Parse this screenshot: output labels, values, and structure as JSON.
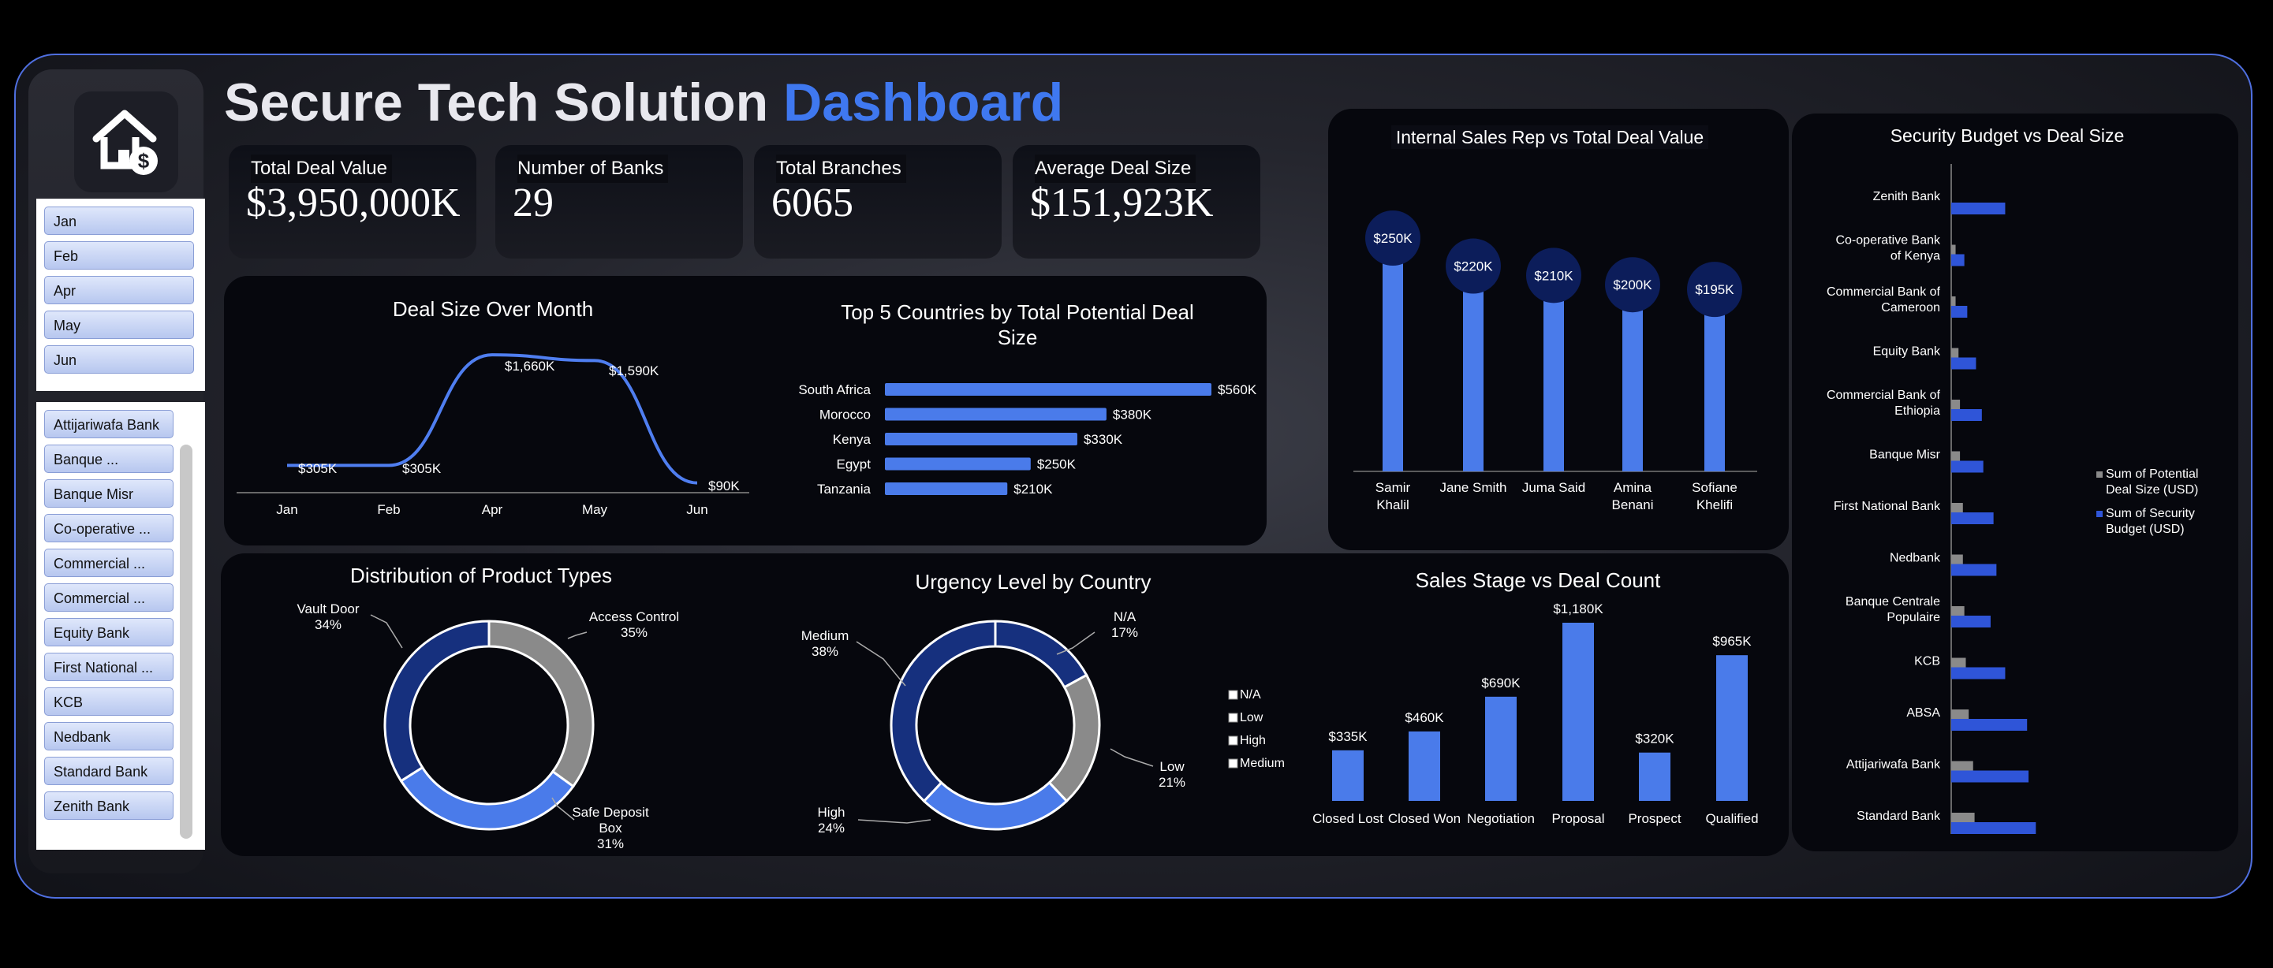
{
  "header": {
    "title_part1": "Secure Tech Solution",
    "title_part2": "Dashboard"
  },
  "colors": {
    "accent": "#3f78f0",
    "bar": "#4a7bea",
    "dark_blue": "#1a3a94",
    "grey": "#8a8a8a",
    "bubble": "#0c1d5a"
  },
  "sidebar": {
    "logo_icon": "house-dollar-icon",
    "months": [
      "Jan",
      "Feb",
      "Apr",
      "May",
      "Jun"
    ],
    "banks": [
      "Attijariwafa Bank",
      "Banque ...",
      "Banque Misr",
      "Co-operative ...",
      "Commercial ...",
      "Commercial ...",
      "Equity Bank",
      "First National ...",
      "KCB",
      "Nedbank",
      "Standard Bank",
      "Zenith Bank"
    ]
  },
  "kpis": [
    {
      "label": "Total Deal Value",
      "value": "$3,950,000K"
    },
    {
      "label": "Number of Banks",
      "value": "29"
    },
    {
      "label": "Total Branches",
      "value": "6065"
    },
    {
      "label": "Average Deal Size",
      "value": "$151,923K"
    }
  ],
  "chart_data": [
    {
      "id": "deal-size-month",
      "type": "line",
      "title": "Deal Size Over Month",
      "categories": [
        "Jan",
        "Feb",
        "Apr",
        "May",
        "Jun"
      ],
      "values": [
        305,
        305,
        1660,
        1590,
        90
      ],
      "labels": [
        "$305K",
        "$305K",
        "$1,660K",
        "$1,590K",
        "$90K"
      ]
    },
    {
      "id": "top-countries",
      "type": "bar",
      "orientation": "horizontal",
      "title": "Top 5 Countries by Total Potential Deal Size",
      "categories": [
        "South Africa",
        "Morocco",
        "Kenya",
        "Egypt",
        "Tanzania"
      ],
      "values": [
        560,
        380,
        330,
        250,
        210
      ],
      "labels": [
        "$560K",
        "$380K",
        "$330K",
        "$250K",
        "$210K"
      ]
    },
    {
      "id": "sales-rep",
      "type": "bar",
      "title": "Internal Sales Rep vs Total Deal Value",
      "categories": [
        "Samir Khalil",
        "Jane Smith",
        "Juma Said",
        "Amina Benani",
        "Sofiane Khelifi"
      ],
      "values": [
        250,
        220,
        210,
        200,
        195
      ],
      "labels": [
        "$250K",
        "$220K",
        "$210K",
        "$200K",
        "$195K"
      ]
    },
    {
      "id": "security-budget",
      "type": "bar",
      "orientation": "horizontal",
      "title": "Security Budget vs Deal Size",
      "categories": [
        "Zenith Bank",
        "Co-operative Bank of Kenya",
        "Commercial Bank of Cameroon",
        "Equity Bank",
        "Commercial Bank of Ethiopia",
        "Banque Misr",
        "First National Bank",
        "Nedbank",
        "Banque Centrale Populaire",
        "KCB",
        "ABSA",
        "Attijariwafa Bank",
        "Standard Bank"
      ],
      "series": [
        {
          "name": "Sum of Potential Deal Size (USD)",
          "values": [
            0,
            3,
            3,
            5,
            6,
            6,
            8,
            8,
            9,
            10,
            12,
            15,
            16
          ]
        },
        {
          "name": "Sum of Security Budget (USD)",
          "values": [
            37,
            9,
            11,
            17,
            21,
            22,
            29,
            31,
            27,
            37,
            52,
            53,
            58
          ]
        }
      ]
    },
    {
      "id": "product-types",
      "type": "pie",
      "title": "Distribution of Product Types",
      "categories": [
        "Access Control",
        "Safe Deposit Box",
        "Vault Door"
      ],
      "values": [
        35,
        31,
        34
      ],
      "labels": [
        "Access Control\n35%",
        "Safe Deposit\nBox\n31%",
        "Vault Door\n34%"
      ]
    },
    {
      "id": "urgency-level",
      "type": "pie",
      "title": "Urgency Level by Country",
      "categories": [
        "N/A",
        "Low",
        "High",
        "Medium"
      ],
      "values": [
        17,
        21,
        24,
        38
      ],
      "labels": [
        "N/A\n17%",
        "Low\n21%",
        "High\n24%",
        "Medium\n38%"
      ],
      "legend": [
        "N/A",
        "Low",
        "High",
        "Medium"
      ]
    },
    {
      "id": "sales-stage",
      "type": "bar",
      "title": "Sales Stage vs Deal Count",
      "categories": [
        "Closed Lost",
        "Closed Won",
        "Negotiation",
        "Proposal",
        "Prospect",
        "Qualified"
      ],
      "values": [
        335,
        460,
        690,
        1180,
        320,
        965
      ],
      "labels": [
        "$335K",
        "$460K",
        "$690K",
        "$1,180K",
        "$320K",
        "$965K"
      ]
    }
  ]
}
